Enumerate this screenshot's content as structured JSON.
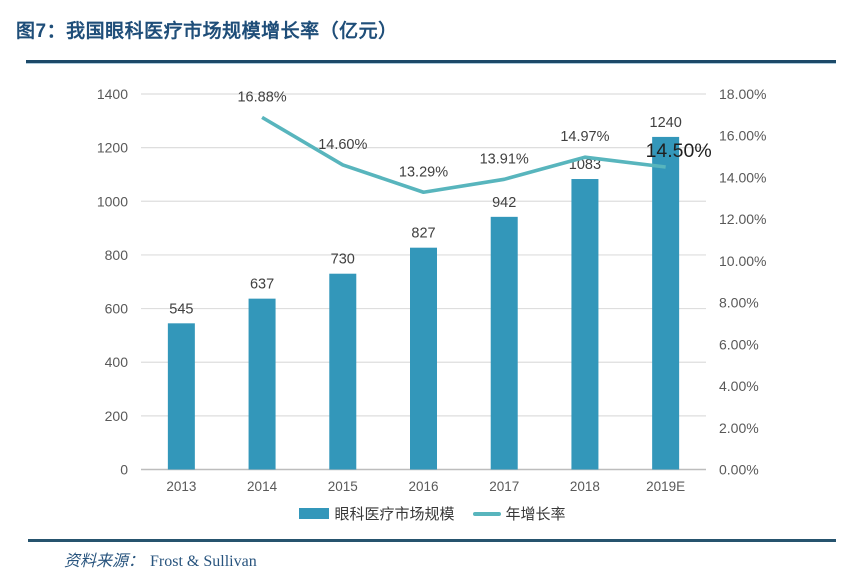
{
  "figure": {
    "title": "图7：我国眼科医疗市场规模增长率（亿元）"
  },
  "source": {
    "label": "资料来源：",
    "value": "Frost & Sullivan"
  },
  "colors": {
    "title": "#1f4e79",
    "bar": "#3397ba",
    "line": "#58b5bd",
    "gridline": "#dedede",
    "axis_line": "#bdbdbd",
    "axis_text": "#595959",
    "data_label": "#404040",
    "emphasis_label": "#1f1f1f",
    "separator": "#1c4968"
  },
  "chart_data": {
    "type": "bar",
    "subtype": "bar-line-combo",
    "title": "图7：我国眼科医疗市场规模增长率（亿元）",
    "categories": [
      "2013",
      "2014",
      "2015",
      "2016",
      "2017",
      "2018",
      "2019E"
    ],
    "series": [
      {
        "name": "眼科医疗市场规模",
        "type": "bar",
        "yaxis": "left",
        "values": [
          545,
          637,
          730,
          827,
          942,
          1083,
          1240
        ],
        "point_labels": [
          "545",
          "637",
          "730",
          "827",
          "942",
          "1083",
          "1240"
        ]
      },
      {
        "name": "年增长率",
        "type": "line",
        "yaxis": "right",
        "values": [
          null,
          16.88,
          14.6,
          13.29,
          13.91,
          14.97,
          14.5
        ],
        "point_labels": [
          "",
          "16.88%",
          "14.60%",
          "13.29%",
          "13.91%",
          "14.97%",
          "14.50%"
        ],
        "emphasized_label_index": 6
      }
    ],
    "left_axis": {
      "min": 0,
      "max": 1400,
      "step": 200,
      "tick_labels": [
        "1400",
        "1200",
        "1000",
        "800",
        "600",
        "400",
        "200",
        "0"
      ]
    },
    "right_axis": {
      "min": 0,
      "max": 18,
      "step": 2,
      "tick_labels": [
        "18.00%",
        "16.00%",
        "14.00%",
        "12.00%",
        "10.00%",
        "8.00%",
        "6.00%",
        "4.00%",
        "2.00%",
        "0.00%"
      ]
    },
    "grid": true,
    "legend_position": "bottom",
    "xlabel": "",
    "ylabel": ""
  }
}
